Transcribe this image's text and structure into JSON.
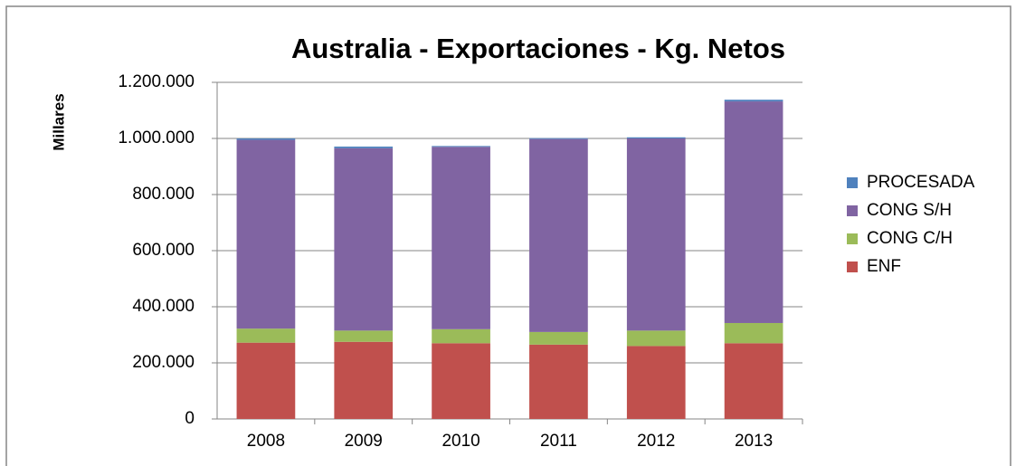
{
  "chart_data": {
    "type": "stacked_bar",
    "title": "Australia - Exportaciones - Kg. Netos",
    "y_label": "Millares",
    "categories": [
      "2008",
      "2009",
      "2010",
      "2011",
      "2012",
      "2013"
    ],
    "series": [
      {
        "name": "ENF",
        "color": "#c0504d",
        "values": [
          272000,
          275000,
          270000,
          265000,
          260000,
          270000
        ]
      },
      {
        "name": "CONG C/H",
        "color": "#9bbb59",
        "values": [
          50000,
          40000,
          50000,
          45000,
          55000,
          72000
        ]
      },
      {
        "name": "CONG S/H",
        "color": "#8064a2",
        "values": [
          673000,
          650000,
          650000,
          688000,
          685000,
          790000
        ]
      },
      {
        "name": "PROCESADA",
        "color": "#4f81bd",
        "values": [
          5000,
          6000,
          3000,
          3000,
          4000,
          6000
        ]
      }
    ],
    "ylim": [
      0,
      1200000
    ],
    "yticks": [
      0,
      {
        "value": 200000,
        "label": "200.000"
      },
      {
        "value": 400000,
        "label": "400.000"
      },
      {
        "value": 600000,
        "label": "600.000"
      },
      {
        "value": 800000,
        "label": "800.000"
      },
      {
        "value": 1000000,
        "label": "1.000.000"
      },
      {
        "value": 1200000,
        "label": "1.200.000"
      }
    ],
    "grid": true,
    "legend": "right"
  }
}
